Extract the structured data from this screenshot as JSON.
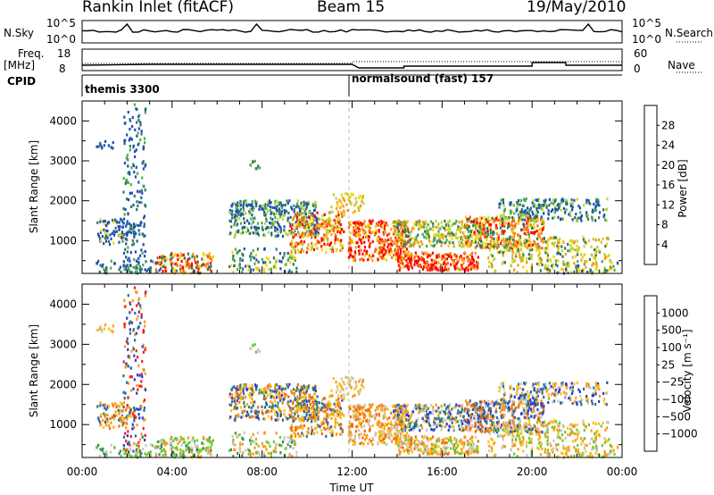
{
  "header": {
    "station": "Rankin Inlet (fitACF)",
    "beam": "Beam 15",
    "date": "19/May/2010"
  },
  "left_labels": {
    "nsky": "N.Sky",
    "freq": "Freq.",
    "freq_unit": "[MHz]",
    "cpid": "CPID",
    "nsky_top": "10^5",
    "nsky_bot": "10^0",
    "freq_top": "18",
    "freq_bot": "8"
  },
  "right_labels": {
    "nsearch": "N.Search",
    "nave": "Nave",
    "nsearch_top": "10^5",
    "nsearch_bot": "10^0",
    "nave_top": "60",
    "nave_bot": "0"
  },
  "cpid_segments": [
    "themis 3300",
    "normalsound (fast) 157"
  ],
  "colors": {
    "power": [
      "#1a1aff",
      "#1f4fb0",
      "#2e7a5c",
      "#52a852",
      "#b0d83a",
      "#f5d20a",
      "#f59a1a",
      "#f26a12",
      "#ff0000"
    ],
    "velocity": [
      "#2a3fcc",
      "#2a6fa0",
      "#3a8a55",
      "#66cc33",
      "#c8c8c8",
      "#f5c21a",
      "#f59a1a",
      "#f26a12",
      "#ff1a1a"
    ]
  },
  "chart_data": [
    {
      "type": "heatmap",
      "panel": "power",
      "ylabel": "Slant Range [km]",
      "xlim": [
        "00:00",
        "24:00"
      ],
      "ylim": [
        180,
        4500
      ],
      "x_ticks": [
        "00:00",
        "04:00",
        "08:00",
        "12:00",
        "16:00",
        "20:00",
        "00:00"
      ],
      "y_ticks": [
        1000,
        2000,
        3000,
        4000
      ],
      "colorbar_label": "Power [dB]",
      "colorbar_ticks": [
        "4",
        "8",
        "12",
        "16",
        "20",
        "24",
        "28"
      ]
    },
    {
      "type": "heatmap",
      "panel": "velocity",
      "xlabel": "Time UT",
      "ylabel": "Slant Range [km]",
      "xlim": [
        "00:00",
        "24:00"
      ],
      "ylim": [
        180,
        4500
      ],
      "x_ticks": [
        "00:00",
        "04:00",
        "08:00",
        "12:00",
        "16:00",
        "20:00",
        "00:00"
      ],
      "y_ticks": [
        1000,
        2000,
        3000,
        4000
      ],
      "colorbar_label": "Velocity [m s⁻¹]",
      "colorbar_ticks": [
        "1000",
        "500",
        "100",
        "25",
        "−25",
        "−100",
        "−500",
        "−1000"
      ]
    }
  ]
}
